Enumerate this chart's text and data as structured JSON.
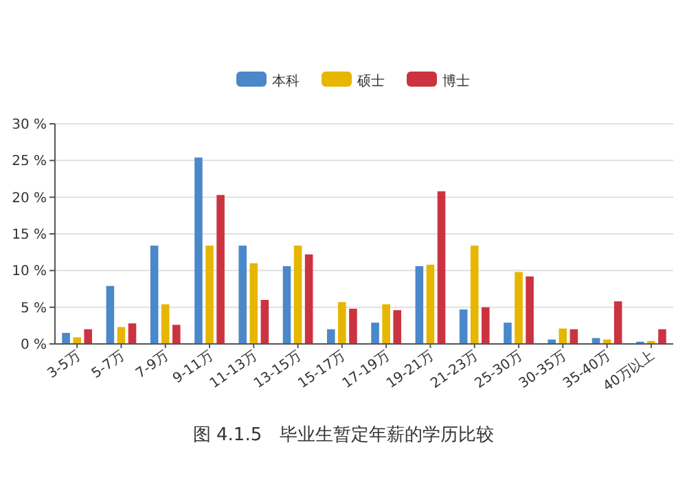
{
  "chart_data": {
    "type": "bar",
    "categories": [
      "3-5万",
      "5-7万",
      "7-9万",
      "9-11万",
      "11-13万",
      "13-15万",
      "15-17万",
      "17-19万",
      "19-21万",
      "21-23万",
      "25-30万",
      "30-35万",
      "35-40万",
      "40万以上"
    ],
    "series": [
      {
        "name": "本科",
        "color": "#4a88c9",
        "values": [
          1.5,
          7.9,
          13.4,
          25.4,
          13.4,
          10.6,
          2.0,
          2.9,
          10.6,
          4.7,
          2.9,
          0.6,
          0.8,
          0.3
        ]
      },
      {
        "name": "硕士",
        "color": "#e6b600",
        "values": [
          0.9,
          2.3,
          5.4,
          13.4,
          11.0,
          13.4,
          5.7,
          5.4,
          10.8,
          13.4,
          9.8,
          2.1,
          0.6,
          0.4
        ]
      },
      {
        "name": "博士",
        "color": "#cc3340",
        "values": [
          2.0,
          2.8,
          2.6,
          20.3,
          6.0,
          12.2,
          4.8,
          4.6,
          20.8,
          5.0,
          9.2,
          2.0,
          5.8,
          2.0
        ]
      }
    ],
    "ylim": [
      0,
      30
    ],
    "yticks": [
      {
        "value": 0,
        "label": "0 %"
      },
      {
        "value": 5,
        "label": "5 %"
      },
      {
        "value": 10,
        "label": "10 %"
      },
      {
        "value": 15,
        "label": "15 %"
      },
      {
        "value": 20,
        "label": "20 %"
      },
      {
        "value": 25,
        "label": "25 %"
      },
      {
        "value": 30,
        "label": "30 %"
      }
    ],
    "grid": "y",
    "legend": "top",
    "annotations": [
      "图 4.1.5　毕业生暂定年薪的学历比较"
    ]
  }
}
